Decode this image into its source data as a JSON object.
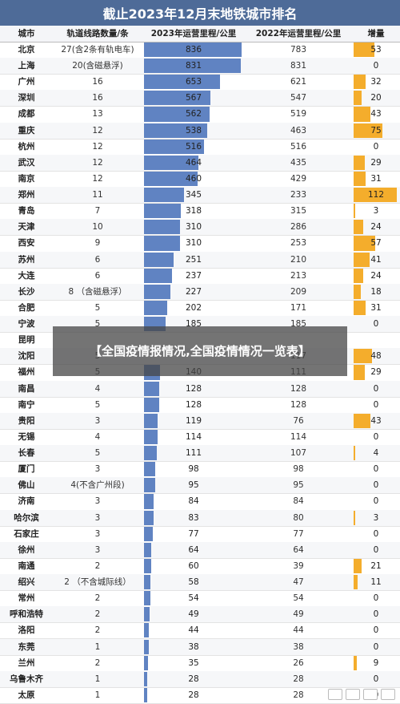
{
  "title": "截止2023年12月末地铁城市排名",
  "headers": {
    "city": "城市",
    "lines": "轨道线路数量/条",
    "y2023": "2023年运营里程/公里",
    "y2022": "2022年运营里程/公里",
    "increase": "增量"
  },
  "overlay_text": "【全国疫情报情况,全国疫情情况一览表】",
  "colors": {
    "title_bg": "#4e6b98",
    "bar_2023": "#6083c2",
    "bar_increase": "#f4ad2c"
  },
  "chart_data": {
    "type": "table",
    "title": "截止2023年12月末地铁城市排名",
    "columns": [
      "城市",
      "轨道线路数量/条",
      "2023年运营里程/公里",
      "2022年运营里程/公里",
      "增量"
    ],
    "rows": [
      [
        "北京",
        "27(含2条有轨电车)",
        836,
        783,
        53
      ],
      [
        "上海",
        "20(含磁悬浮)",
        831,
        831,
        0
      ],
      [
        "广州",
        "16",
        653,
        621,
        32
      ],
      [
        "深圳",
        "16",
        567,
        547,
        20
      ],
      [
        "成都",
        "13",
        562,
        519,
        43
      ],
      [
        "重庆",
        "12",
        538,
        463,
        75
      ],
      [
        "杭州",
        "12",
        516,
        516,
        0
      ],
      [
        "武汉",
        "12",
        464,
        435,
        29
      ],
      [
        "南京",
        "12",
        460,
        429,
        31
      ],
      [
        "郑州",
        "11",
        345,
        233,
        112
      ],
      [
        "青岛",
        "7",
        318,
        315,
        3
      ],
      [
        "天津",
        "10",
        310,
        286,
        24
      ],
      [
        "西安",
        "9",
        310,
        253,
        57
      ],
      [
        "苏州",
        "6",
        251,
        210,
        41
      ],
      [
        "大连",
        "6",
        237,
        213,
        24
      ],
      [
        "长沙",
        "8 （含磁悬浮）",
        227,
        209,
        18
      ],
      [
        "合肥",
        "5",
        202,
        171,
        31
      ],
      [
        "宁波",
        "5",
        185,
        185,
        0
      ],
      [
        "昆明",
        "",
        0,
        0,
        0
      ],
      [
        "沈阳",
        "5",
        165,
        117,
        48
      ],
      [
        "福州",
        "5",
        140,
        111,
        29
      ],
      [
        "南昌",
        "4",
        128,
        128,
        0
      ],
      [
        "南宁",
        "5",
        128,
        128,
        0
      ],
      [
        "贵阳",
        "3",
        119,
        76,
        43
      ],
      [
        "无锡",
        "4",
        114,
        114,
        0
      ],
      [
        "长春",
        "5",
        111,
        107,
        4
      ],
      [
        "厦门",
        "3",
        98,
        98,
        0
      ],
      [
        "佛山",
        "4(不含广州段)",
        95,
        95,
        0
      ],
      [
        "济南",
        "3",
        84,
        84,
        0
      ],
      [
        "哈尔滨",
        "3",
        83,
        80,
        3
      ],
      [
        "石家庄",
        "3",
        77,
        77,
        0
      ],
      [
        "徐州",
        "3",
        64,
        64,
        0
      ],
      [
        "南通",
        "2",
        60,
        39,
        21
      ],
      [
        "绍兴",
        "2 （不含城际线）",
        58,
        47,
        11
      ],
      [
        "常州",
        "2",
        54,
        54,
        0
      ],
      [
        "呼和浩特",
        "2",
        49,
        49,
        0
      ],
      [
        "洛阳",
        "2",
        44,
        44,
        0
      ],
      [
        "东莞",
        "1",
        38,
        38,
        0
      ],
      [
        "兰州",
        "2",
        35,
        26,
        9
      ],
      [
        "乌鲁木齐",
        "1",
        28,
        28,
        0
      ],
      [
        "太原",
        "1",
        28,
        28,
        0
      ]
    ],
    "hidden_cells": [
      [
        18,
        1
      ],
      [
        18,
        2
      ],
      [
        18,
        3
      ],
      [
        18,
        4
      ],
      [
        19,
        2
      ]
    ]
  }
}
